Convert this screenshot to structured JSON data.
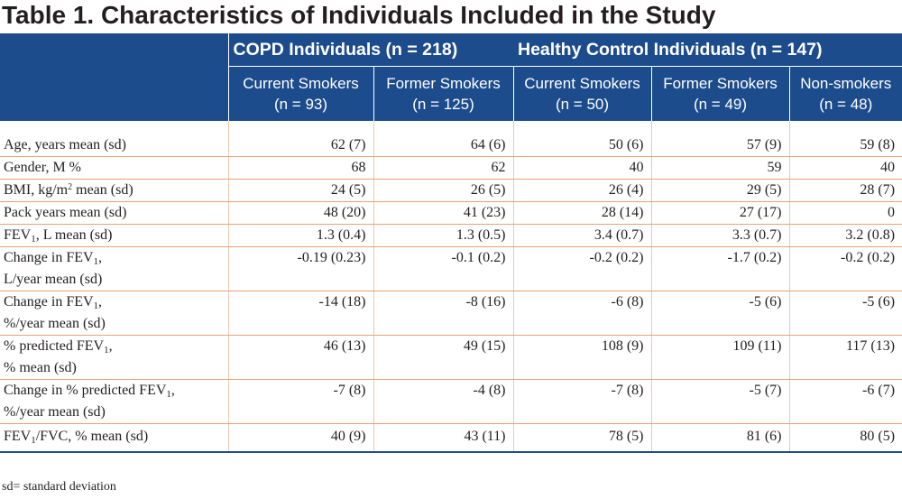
{
  "title": "Table 1. Characteristics of Individuals Included in the Study",
  "groups": {
    "copd": "COPD Individuals (n = 218)",
    "healthy": "Healthy Control Individuals (n = 147)"
  },
  "columns": [
    {
      "line1": "Current Smokers",
      "line2": "(n = 93)"
    },
    {
      "line1": "Former Smokers",
      "line2": "(n = 125)"
    },
    {
      "line1": "Current Smokers",
      "line2": "(n = 50)"
    },
    {
      "line1": "Former Smokers",
      "line2": "(n = 49)"
    },
    {
      "line1": "Non-smokers",
      "line2": "(n = 48)"
    }
  ],
  "rows": [
    {
      "label": "Age, years mean (sd)",
      "values": [
        "62 (7)",
        "64 (6)",
        "50 (6)",
        "57 (9)",
        "59 (8)"
      ]
    },
    {
      "label": "Gender, M %",
      "values": [
        "68",
        "62",
        "40",
        "59",
        "40"
      ]
    },
    {
      "label_pre": "BMI, kg/m",
      "label_sup": "2",
      "label_post": " mean (sd)",
      "values": [
        "24 (5)",
        "26 (5)",
        "26 (4)",
        "29 (5)",
        "28 (7)"
      ]
    },
    {
      "label": "Pack years mean (sd)",
      "values": [
        "48 (20)",
        "41 (23)",
        "28 (14)",
        "27 (17)",
        "0"
      ]
    },
    {
      "label_pre": "FEV",
      "label_sub": "1",
      "label_post": ", L mean (sd)",
      "values": [
        "1.3 (0.4)",
        "1.3 (0.5)",
        "3.4 (0.7)",
        "3.3 (0.7)",
        "3.2 (0.8)"
      ]
    },
    {
      "label_pre": "Change in FEV",
      "label_sub": "1",
      "label_post": ",",
      "label_line2": "L/year mean (sd)",
      "values": [
        "-0.19 (0.23)",
        "-0.1 (0.2)",
        "-0.2 (0.2)",
        "-1.7 (0.2)",
        "-0.2 (0.2)"
      ]
    },
    {
      "label_pre": "Change in FEV",
      "label_sub": "1",
      "label_post": ",",
      "label_line2": "%/year mean (sd)",
      "values": [
        "-14 (18)",
        "-8 (16)",
        "-6 (8)",
        "-5 (6)",
        "-5 (6)"
      ]
    },
    {
      "label_pre": "% predicted FEV",
      "label_sub": "1",
      "label_post": ",",
      "label_line2": "% mean (sd)",
      "values": [
        "46 (13)",
        "49 (15)",
        "108 (9)",
        "109 (11)",
        "117 (13)"
      ]
    },
    {
      "label_pre": "Change in % predicted FEV",
      "label_sub": "1",
      "label_post": ",",
      "label_line2": "%/year mean (sd)",
      "values": [
        "-7 (8)",
        "-4 (8)",
        "-7 (8)",
        "-5 (7)",
        "-6 (7)"
      ]
    },
    {
      "label_pre": "FEV",
      "label_sub": "1",
      "label_post": "/FVC, % mean (sd)",
      "values": [
        "40 (9)",
        "43 (11)",
        "78 (5)",
        "81 (6)",
        "80 (5)"
      ]
    }
  ],
  "footnote": "sd= standard deviation",
  "colors": {
    "header_bg": "#1d4c8c",
    "row_rule": "#e8a27a",
    "text": "#231f20"
  }
}
